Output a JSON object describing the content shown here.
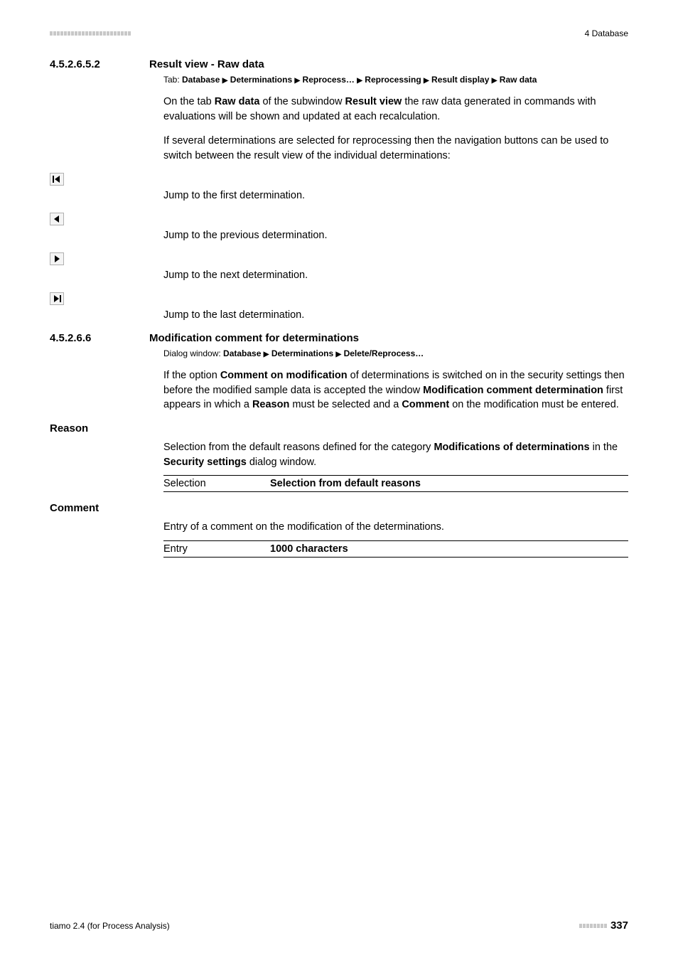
{
  "header": {
    "chapter_label": "4 Database"
  },
  "section1": {
    "number": "4.5.2.6.5.2",
    "title": "Result view - Raw data",
    "tab_prefix": "Tab: ",
    "tab_path": "Database ▸ Determinations ▸ Reprocess… ▸ Reprocessing ▸ Result display ▸ Raw data",
    "p1_a": "On the tab ",
    "p1_b": "Raw data",
    "p1_c": " of the subwindow ",
    "p1_d": "Result view",
    "p1_e": " the raw data generated in commands with evaluations will be shown and updated at each recalculation.",
    "p2": "If several determinations are selected for reprocessing then the navigation buttons can be used to switch between the result view of the individual determinations:",
    "jump_first": "Jump to the first determination.",
    "jump_prev": "Jump to the previous determination.",
    "jump_next": "Jump to the next determination.",
    "jump_last": "Jump to the last determination."
  },
  "section2": {
    "number": "4.5.2.6.6",
    "title": "Modification comment for determinations",
    "dialog_prefix": "Dialog window: ",
    "dialog_path": "Database ▸ Determinations ▸ Delete/Reprocess…",
    "p1_a": "If the option ",
    "p1_b": "Comment on modification",
    "p1_c": " of determinations is switched on in the security settings then before the modified sample data is accepted the window ",
    "p1_d": "Modification comment determination",
    "p1_e": " first appears in which a ",
    "p1_f": "Reason",
    "p1_g": " must be selected and a ",
    "p1_h": "Comment",
    "p1_i": " on the modification must be entered."
  },
  "reason": {
    "label": "Reason",
    "desc_a": "Selection from the default reasons defined for the category ",
    "desc_b": "Modifications of determinations",
    "desc_c": " in the ",
    "desc_d": "Security settings",
    "desc_e": " dialog window.",
    "kv_key": "Selection",
    "kv_val": "Selection from default reasons"
  },
  "comment": {
    "label": "Comment",
    "desc": "Entry of a comment on the modification of the determinations.",
    "kv_key": "Entry",
    "kv_val": "1000 characters"
  },
  "footer": {
    "product": "tiamo 2.4 (for Process Analysis)",
    "page": "337"
  },
  "style": {
    "dash_count_header": 23,
    "dash_count_footer": 8,
    "dash_color": "#c8c8c8"
  }
}
